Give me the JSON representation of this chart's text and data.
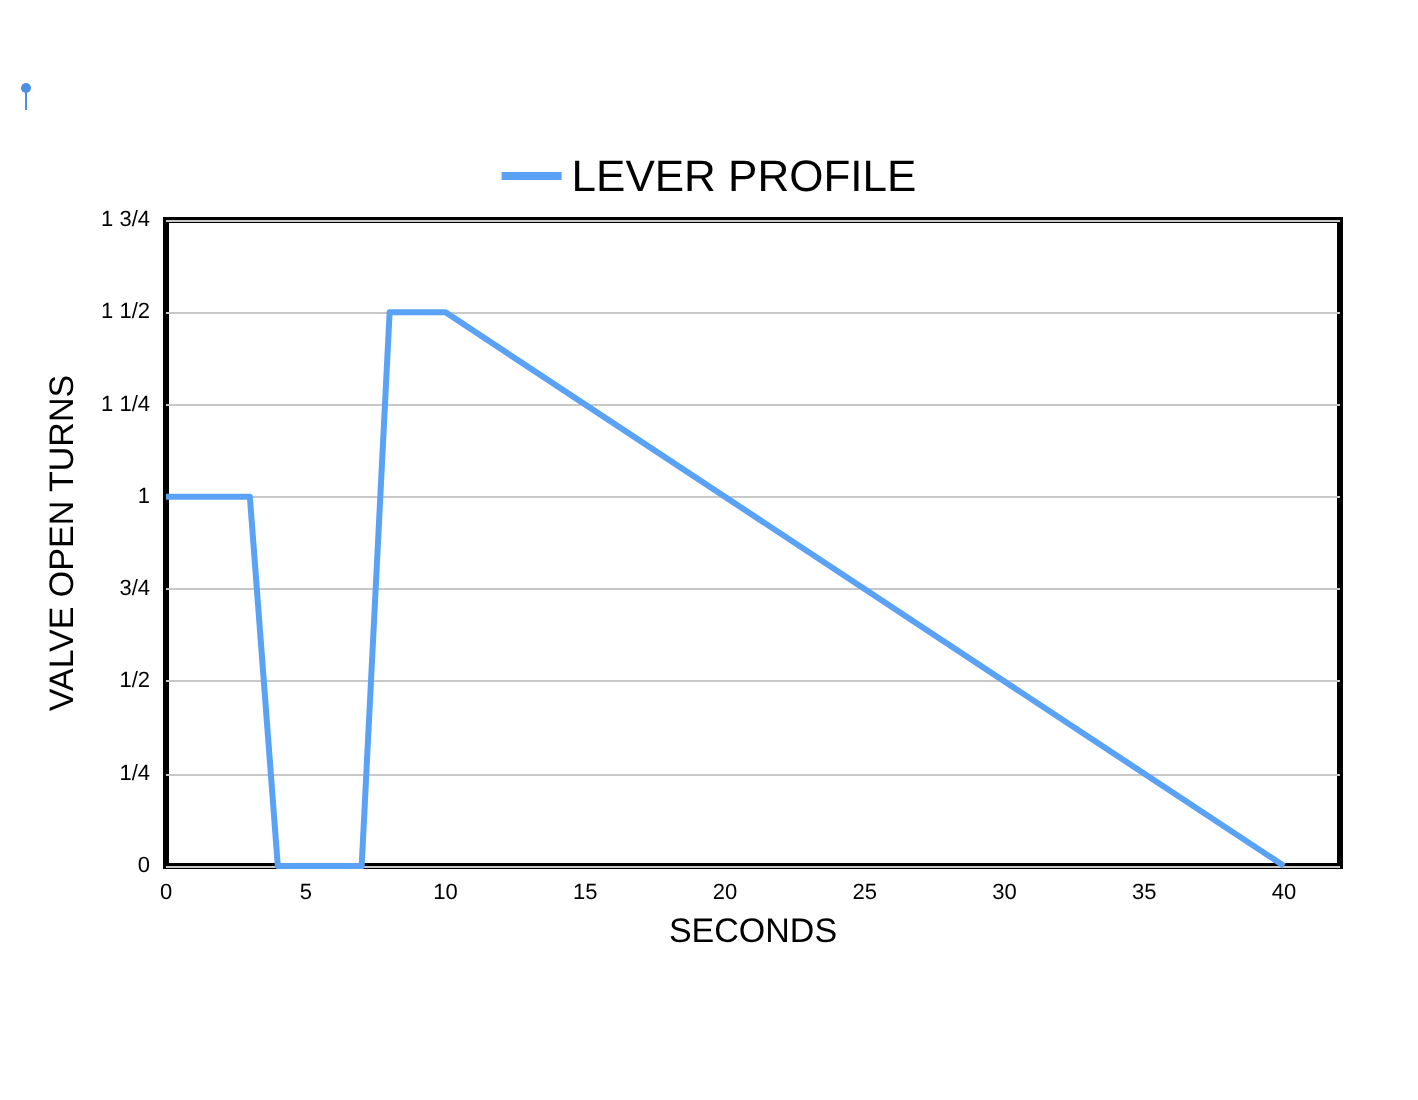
{
  "chart_data": {
    "type": "line",
    "xlabel": "SECONDS",
    "ylabel": "VALVE OPEN TURNS",
    "legend": "top",
    "grid": "y",
    "marker": "none",
    "line_style": "solid",
    "xlim": [
      0,
      42
    ],
    "xticks": [
      0,
      5,
      10,
      15,
      20,
      25,
      30,
      35,
      40
    ],
    "ylim": [
      0,
      1.75
    ],
    "yticks": [
      0,
      {
        "value": 0.25,
        "label": "1/4"
      },
      {
        "value": 0.5,
        "label": "1/2"
      },
      {
        "value": 0.75,
        "label": "3/4"
      },
      1,
      {
        "value": 1.25,
        "label": "1 1/4"
      },
      {
        "value": 1.5,
        "label": "1 1/2"
      },
      {
        "value": 1.75,
        "label": "1 3/4"
      }
    ],
    "series": [
      {
        "name": "LEVER PROFILE",
        "color": "#5aa2f5",
        "x": [
          0,
          3,
          4,
          7,
          8,
          10,
          40
        ],
        "values": [
          1,
          1,
          0,
          0,
          1.5,
          1.5,
          0
        ]
      }
    ]
  }
}
